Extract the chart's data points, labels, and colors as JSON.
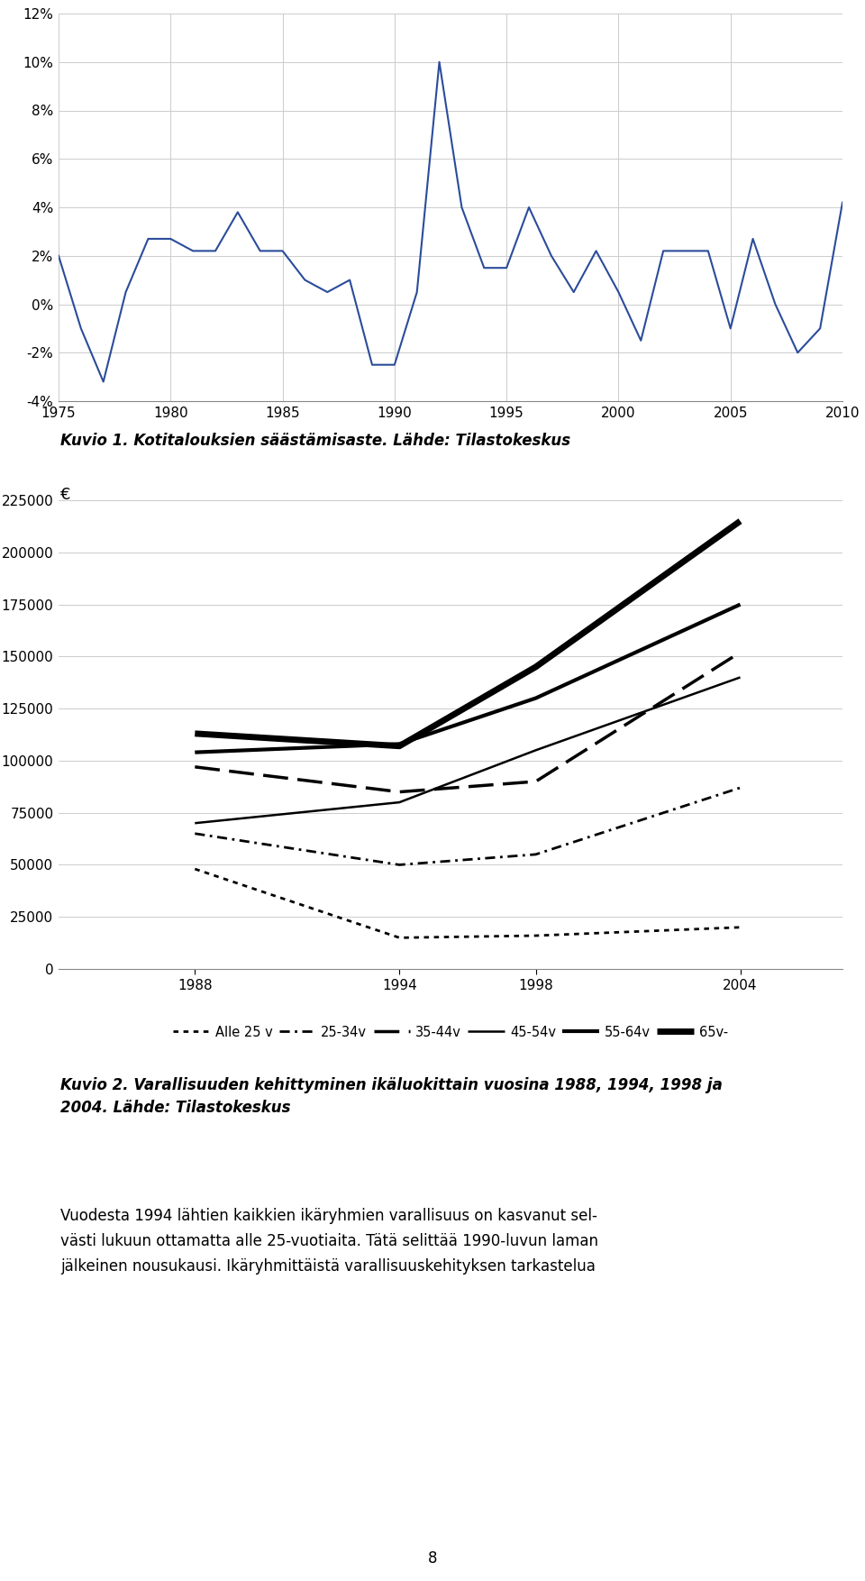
{
  "chart1": {
    "years": [
      1975,
      1976,
      1977,
      1978,
      1979,
      1980,
      1981,
      1982,
      1983,
      1984,
      1985,
      1986,
      1987,
      1988,
      1989,
      1990,
      1991,
      1992,
      1993,
      1994,
      1995,
      1996,
      1997,
      1998,
      1999,
      2000,
      2001,
      2002,
      2003,
      2004,
      2005,
      2006,
      2007,
      2008,
      2009,
      2010
    ],
    "values": [
      0.02,
      -0.01,
      -0.032,
      0.005,
      0.027,
      0.027,
      0.022,
      0.022,
      0.038,
      0.022,
      0.022,
      0.01,
      0.005,
      0.01,
      -0.025,
      -0.025,
      0.005,
      0.1,
      0.04,
      0.015,
      0.015,
      0.04,
      0.02,
      0.005,
      0.022,
      0.005,
      -0.015,
      0.022,
      0.022,
      0.022,
      -0.01,
      0.027,
      0.0,
      -0.02,
      -0.01,
      0.042
    ],
    "color": "#2b4c9b",
    "ylim": [
      -0.04,
      0.12
    ],
    "yticks": [
      -0.04,
      -0.02,
      0.0,
      0.02,
      0.04,
      0.06,
      0.08,
      0.1,
      0.12
    ],
    "ytick_labels": [
      "-4%",
      "-2%",
      "0%",
      "2%",
      "4%",
      "6%",
      "8%",
      "10%",
      "12%"
    ],
    "xticks": [
      1975,
      1980,
      1985,
      1990,
      1995,
      2000,
      2005,
      2010
    ],
    "xlim": [
      1975,
      2010
    ]
  },
  "chart1_caption": "Kuvio 1. Kotitalouksien säästämisaste. Lähde: Tilastokeskus",
  "chart2": {
    "years": [
      1988,
      1994,
      1998,
      2004
    ],
    "series": {
      "Alle 25 v": [
        48000,
        15000,
        16000,
        20000
      ],
      "25-34v": [
        65000,
        50000,
        55000,
        87000
      ],
      "35-44v": [
        97000,
        85000,
        90000,
        152000
      ],
      "45-54v": [
        70000,
        80000,
        105000,
        140000
      ],
      "55-64v": [
        104000,
        108000,
        130000,
        175000
      ],
      "65v-": [
        113000,
        107000,
        145000,
        215000
      ]
    },
    "styles": {
      "Alle 25 v": {
        "color": "black",
        "linestyle": "dotted",
        "linewidth": 2.0
      },
      "25-34v": {
        "color": "black",
        "linestyle": "dashdot_loose",
        "linewidth": 2.0
      },
      "35-44v": {
        "color": "black",
        "linestyle": "dashed",
        "linewidth": 2.5
      },
      "45-54v": {
        "color": "black",
        "linestyle": "solid",
        "linewidth": 1.8
      },
      "55-64v": {
        "color": "black",
        "linestyle": "solid",
        "linewidth": 3.0
      },
      "65v-": {
        "color": "black",
        "linestyle": "solid",
        "linewidth": 5.0
      }
    },
    "ylim": [
      0,
      225000
    ],
    "yticks": [
      0,
      25000,
      50000,
      75000,
      100000,
      125000,
      150000,
      175000,
      200000,
      225000
    ],
    "ytick_labels": [
      "0",
      "25000",
      "50000",
      "75000",
      "100000",
      "125000",
      "150000",
      "175000",
      "200000",
      "225000"
    ],
    "xticks": [
      1988,
      1994,
      1998,
      2004
    ],
    "xlim": [
      1984,
      2007
    ],
    "ylabel": "€"
  },
  "chart2_caption_line1": "Kuvio 2. Varallisuuden kehittyminen ikäluokittain vuosina 1988, 1994, 1998 ja",
  "chart2_caption_line2": "2004. Lähde: Tilastokeskus",
  "body_text_line1": "Vuodesta 1994 lähtien kaikkien ikäryhmien varallisuus on kasvanut sel-",
  "body_text_line2": "västi lukuun ottamatta alle 25-vuotiaita. Tätä selittää 1990-luvun laman",
  "body_text_line3": "jälkeinen nousukausi. Ikäryhmittäistä varallisuuskehityksen tarkastelua",
  "page_number": "8",
  "background_color": "#ffffff",
  "grid_color": "#cccccc",
  "legend_labels": [
    "Alle 25 v",
    "25-34v",
    "35-44v",
    "45-54v",
    "55-64v",
    "65v-"
  ]
}
